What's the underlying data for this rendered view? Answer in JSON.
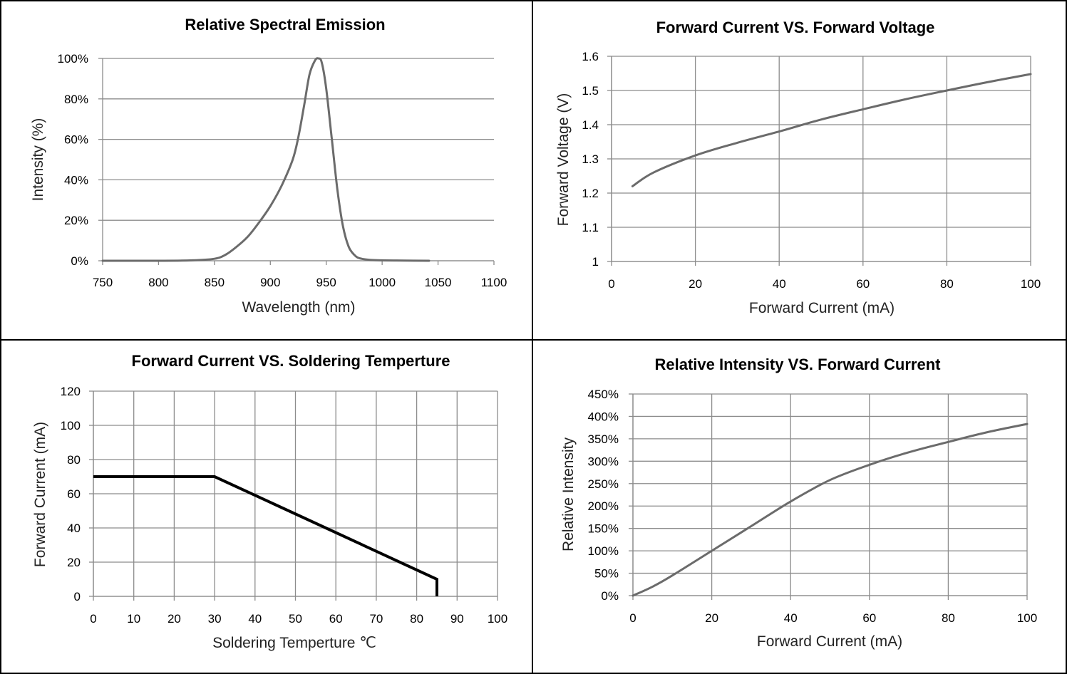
{
  "chart_data": [
    {
      "id": "spectral",
      "type": "line",
      "title": "Relative Spectral Emission",
      "xlabel": "Wavelength (nm)",
      "ylabel": "Intensity (%)",
      "xlim": [
        750,
        1100
      ],
      "ylim": [
        0,
        100
      ],
      "xticks": [
        750,
        800,
        850,
        900,
        950,
        1000,
        1050,
        1100
      ],
      "yticks": [
        0,
        20,
        40,
        60,
        80,
        100
      ],
      "ytick_labels": [
        "0%",
        "20%",
        "40%",
        "60%",
        "80%",
        "100%"
      ],
      "xgrid": false,
      "ygrid": true,
      "series": [
        {
          "color": "#6b6b6b",
          "x": [
            750,
            800,
            830,
            850,
            860,
            870,
            880,
            890,
            900,
            910,
            920,
            925,
            930,
            935,
            940,
            943,
            946,
            950,
            955,
            960,
            965,
            970,
            975,
            980,
            990,
            1000,
            1020,
            1042
          ],
          "y": [
            0,
            0,
            0.2,
            1,
            3,
            7,
            12,
            19,
            27,
            37,
            50,
            61,
            76,
            92,
            99,
            100,
            98,
            85,
            60,
            35,
            17,
            7,
            3,
            1.2,
            0.4,
            0.2,
            0.1,
            0
          ]
        }
      ]
    },
    {
      "id": "fv",
      "type": "line",
      "title": "Forward Current VS. Forward Voltage",
      "xlabel": "Forward Current (mA)",
      "ylabel": "Forward Voltage (V)",
      "xlim": [
        0,
        100
      ],
      "ylim": [
        1,
        1.6
      ],
      "xticks": [
        0,
        20,
        40,
        60,
        80,
        100
      ],
      "xtick_labels": [
        "0",
        "20",
        "40",
        "60",
        "80",
        "100"
      ],
      "yticks": [
        1,
        1.1,
        1.2,
        1.3,
        1.4,
        1.5,
        1.6
      ],
      "ytick_labels": [
        "1",
        "1.1",
        "1.2",
        "1.3",
        "1.4",
        "1.5",
        "1.6"
      ],
      "xgrid": true,
      "ygrid": true,
      "series": [
        {
          "color": "#6b6b6b",
          "x": [
            5,
            10,
            20,
            30,
            40,
            50,
            60,
            70,
            80,
            90,
            100
          ],
          "y": [
            1.22,
            1.26,
            1.31,
            1.347,
            1.38,
            1.415,
            1.445,
            1.474,
            1.5,
            1.525,
            1.548
          ]
        }
      ]
    },
    {
      "id": "temp",
      "type": "line",
      "title": "Forward Current  VS. Soldering Temperture",
      "xlabel": "Soldering Temperture ℃",
      "ylabel": "Forward Current (mA)",
      "xlim": [
        0,
        100
      ],
      "ylim": [
        0,
        120
      ],
      "xticks": [
        0,
        10,
        20,
        30,
        40,
        50,
        60,
        70,
        80,
        90,
        100
      ],
      "xtick_labels": [
        "0",
        "10",
        "20",
        "30",
        "40",
        "50",
        "60",
        "70",
        "80",
        "90",
        "100"
      ],
      "yticks": [
        0,
        20,
        40,
        60,
        80,
        100,
        120
      ],
      "ytick_labels": [
        "0",
        "20",
        "40",
        "60",
        "80",
        "100",
        "120"
      ],
      "xgrid": true,
      "ygrid": true,
      "series": [
        {
          "color": "#000000",
          "x": [
            0,
            30,
            85,
            85
          ],
          "y": [
            70,
            70,
            10,
            0
          ]
        }
      ]
    },
    {
      "id": "ri",
      "type": "line",
      "title": "Relative Intensity VS. Forward Current",
      "xlabel": "Forward Current (mA)",
      "ylabel": "Relative Intensity",
      "xlim": [
        0,
        100
      ],
      "ylim": [
        0,
        450
      ],
      "xticks": [
        0,
        20,
        40,
        60,
        80,
        100
      ],
      "xtick_labels": [
        "0",
        "20",
        "40",
        "60",
        "80",
        "100"
      ],
      "yticks": [
        0,
        50,
        100,
        150,
        200,
        250,
        300,
        350,
        400,
        450
      ],
      "ytick_labels": [
        "0%",
        "50%",
        "100%",
        "150%",
        "200%",
        "250%",
        "300%",
        "350%",
        "400%",
        "450%"
      ],
      "xgrid": true,
      "ygrid": true,
      "series": [
        {
          "color": "#6b6b6b",
          "x": [
            0,
            5,
            10,
            20,
            30,
            40,
            50,
            60,
            70,
            80,
            90,
            100
          ],
          "y": [
            0,
            20,
            45,
            100,
            155,
            210,
            258,
            292,
            320,
            343,
            365,
            383
          ]
        }
      ]
    }
  ]
}
